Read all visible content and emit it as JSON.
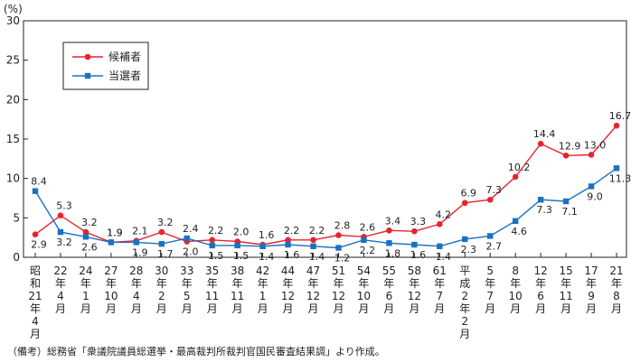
{
  "chart_data": {
    "type": "line",
    "unit": "(%)",
    "ylim": [
      0,
      30
    ],
    "yticks": [
      0,
      5,
      10,
      15,
      20,
      25,
      30
    ],
    "grid": false,
    "legend_position": "top-left",
    "categories": [
      [
        "昭",
        "和",
        "21",
        "年",
        "4",
        "月"
      ],
      [
        "22",
        "年",
        "4",
        "月"
      ],
      [
        "24",
        "年",
        "1",
        "月"
      ],
      [
        "27",
        "年",
        "10",
        "月"
      ],
      [
        "28",
        "年",
        "4",
        "月"
      ],
      [
        "30",
        "年",
        "2",
        "月"
      ],
      [
        "33",
        "年",
        "5",
        "月"
      ],
      [
        "35",
        "年",
        "11",
        "月"
      ],
      [
        "38",
        "年",
        "11",
        "月"
      ],
      [
        "42",
        "年",
        "1",
        "月"
      ],
      [
        "44",
        "年",
        "12",
        "月"
      ],
      [
        "47",
        "年",
        "12",
        "月"
      ],
      [
        "51",
        "年",
        "12",
        "月"
      ],
      [
        "54",
        "年",
        "10",
        "月"
      ],
      [
        "55",
        "年",
        "6",
        "月"
      ],
      [
        "58",
        "年",
        "12",
        "月"
      ],
      [
        "61",
        "年",
        "7",
        "月"
      ],
      [
        "平",
        "成",
        "2",
        "年",
        "2",
        "月"
      ],
      [
        "5",
        "年",
        "7",
        "月"
      ],
      [
        "8",
        "年",
        "10",
        "月"
      ],
      [
        "12",
        "年",
        "6",
        "月"
      ],
      [
        "15",
        "年",
        "11",
        "月"
      ],
      [
        "17",
        "年",
        "9",
        "月"
      ],
      [
        "21",
        "年",
        "8",
        "月"
      ]
    ],
    "series": [
      {
        "name": "候補者",
        "color": "#e8232f",
        "marker": "circle",
        "values": [
          2.9,
          5.3,
          3.2,
          1.9,
          2.1,
          3.2,
          2.0,
          2.2,
          2.0,
          1.6,
          2.2,
          2.2,
          2.8,
          2.6,
          3.4,
          3.3,
          4.2,
          6.9,
          7.3,
          10.2,
          14.4,
          12.9,
          13.0,
          16.7
        ]
      },
      {
        "name": "当選者",
        "color": "#1a72c0",
        "marker": "square",
        "values": [
          8.4,
          3.2,
          2.6,
          1.9,
          1.9,
          1.7,
          2.4,
          1.5,
          1.5,
          1.4,
          1.6,
          1.4,
          1.2,
          2.2,
          1.8,
          1.6,
          1.4,
          2.3,
          2.7,
          4.6,
          7.3,
          7.1,
          9.0,
          11.3
        ]
      }
    ]
  },
  "footnote": "（備考）総務省「衆議院議員総選挙・最高裁判所裁判官国民審査結果調」より作成。"
}
